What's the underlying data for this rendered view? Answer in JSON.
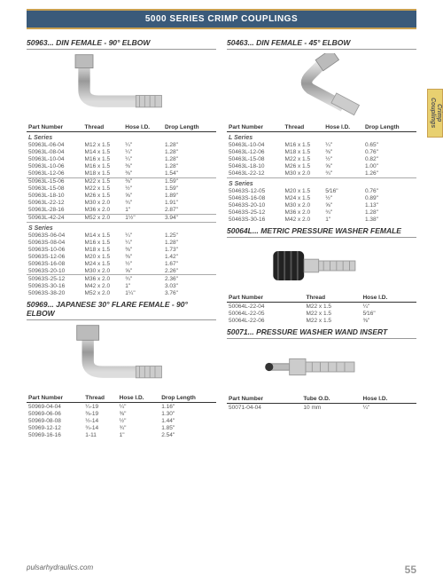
{
  "header": "5000 SERIES CRIMP COUPLINGS",
  "side_tab": "Crimp Couplings",
  "footer": {
    "url": "pulsarhydraulics.com",
    "page": "55"
  },
  "sec1": {
    "title": "50963... DIN FEMALE - 90° ELBOW",
    "cols": [
      "Part Number",
      "Thread",
      "Hose I.D.",
      "Drop Length"
    ],
    "series1_label": "L Series",
    "g1": [
      [
        "50963L-06-04",
        "M12 x 1.5",
        "¼\"",
        "1.28\""
      ],
      [
        "50963L-08-04",
        "M14 x 1.5",
        "¼\"",
        "1.28\""
      ],
      [
        "50963L-10-04",
        "M16 x 1.5",
        "¼\"",
        "1.28\""
      ],
      [
        "50963L-10-06",
        "M16 x 1.5",
        "⅜\"",
        "1.28\""
      ],
      [
        "50963L-12-06",
        "M18 x 1.5",
        "⅜\"",
        "1.54\""
      ]
    ],
    "g2": [
      [
        "50963L-15-06",
        "M22 x 1.5",
        "⅜\"",
        "1.59\""
      ],
      [
        "50963L-15-08",
        "M22 x 1.5",
        "½\"",
        "1.59\""
      ],
      [
        "50963L-18-10",
        "M26 x 1.5",
        "⅝\"",
        "1.89\""
      ],
      [
        "50963L-22-12",
        "M30 x 2.0",
        "¾\"",
        "1.91\""
      ],
      [
        "50963L-28-16",
        "M36 x 2.0",
        "1\"",
        "2.87\""
      ]
    ],
    "g3": [
      [
        "50963L-42-24",
        "M52 x 2.0",
        "1½\"",
        "3.94\""
      ]
    ],
    "series2_label": "S Series",
    "g4": [
      [
        "50963S-06-04",
        "M14 x 1.5",
        "¼\"",
        "1.25\""
      ],
      [
        "50963S-08-04",
        "M16 x 1.5",
        "¼\"",
        "1.28\""
      ],
      [
        "50963S-10-06",
        "M18 x 1.5",
        "⅜\"",
        "1.73\""
      ],
      [
        "50963S-12-06",
        "M20 x 1.5",
        "⅜\"",
        "1.42\""
      ],
      [
        "50963S-16-08",
        "M24 x 1.5",
        "½\"",
        "1.67\""
      ],
      [
        "50963S-20-10",
        "M30 x 2.0",
        "⅝\"",
        "2.26\""
      ]
    ],
    "g5": [
      [
        "50963S-25-12",
        "M36 x 2.0",
        "¾\"",
        "2.36\""
      ],
      [
        "50963S-30-16",
        "M42 x 2.0",
        "1\"",
        "3.03\""
      ],
      [
        "50963S-38-20",
        "M52 x 2.0",
        "1¼\"",
        "3.76\""
      ]
    ]
  },
  "sec2": {
    "title": "50969... JAPANESE 30° FLARE FEMALE - 90° ELBOW",
    "cols": [
      "Part Number",
      "Thread",
      "Hose I.D.",
      "Drop Length"
    ],
    "rows": [
      [
        "50969-04-04",
        "¼-19",
        "¼\"",
        "1.16\""
      ],
      [
        "50969-06-06",
        "⅜-19",
        "⅜\"",
        "1.30\""
      ],
      [
        "50969-08-08",
        "½-14",
        "½\"",
        "1.44\""
      ],
      [
        "50969-12-12",
        "¾-14",
        "¾\"",
        "1.85\""
      ],
      [
        "50969-16-16",
        "1-11",
        "1\"",
        "2.54\""
      ]
    ]
  },
  "sec3": {
    "title": "50463... DIN FEMALE - 45° ELBOW",
    "cols": [
      "Part Number",
      "Thread",
      "Hose I.D.",
      "Drop Length"
    ],
    "series1_label": "L Series",
    "g1": [
      [
        "50463L-10-04",
        "M16 x 1.5",
        "¼\"",
        "0.65\""
      ],
      [
        "50463L-12-06",
        "M18 x 1.5",
        "⅜\"",
        "0.76\""
      ],
      [
        "50463L-15-08",
        "M22 x 1.5",
        "½\"",
        "0.82\""
      ],
      [
        "50463L-18-10",
        "M26 x 1.5",
        "⅝\"",
        "1.00\""
      ],
      [
        "50463L-22-12",
        "M30 x 2.0",
        "¾\"",
        "1.26\""
      ]
    ],
    "series2_label": "S Series",
    "g2": [
      [
        "50463S-12-05",
        "M20 x 1.5",
        "5⁄16\"",
        "0.76\""
      ],
      [
        "50463S-16-08",
        "M24 x 1.5",
        "½\"",
        "0.89\""
      ],
      [
        "50463S-20-10",
        "M30 x 2.0",
        "⅝\"",
        "1.13\""
      ],
      [
        "50463S-25-12",
        "M36 x 2.0",
        "¾\"",
        "1.28\""
      ],
      [
        "50463S-30-16",
        "M42 x 2.0",
        "1\"",
        "1.38\""
      ]
    ]
  },
  "sec4": {
    "title": "50064L... METRIC PRESSURE WASHER FEMALE",
    "cols": [
      "Part Number",
      "Thread",
      "Hose I.D."
    ],
    "rows": [
      [
        "50064L-22-04",
        "M22 x 1.5",
        "¼\""
      ],
      [
        "50064L-22-05",
        "M22 x 1.5",
        "5⁄16\""
      ],
      [
        "50064L-22-06",
        "M22 x 1.5",
        "⅜\""
      ]
    ]
  },
  "sec5": {
    "title": "50071... PRESSURE WASHER WAND INSERT",
    "cols": [
      "Part Number",
      "Tube O.D.",
      "Hose I.D."
    ],
    "rows": [
      [
        "50071-04-04",
        "10 mm",
        "¼\""
      ]
    ]
  }
}
